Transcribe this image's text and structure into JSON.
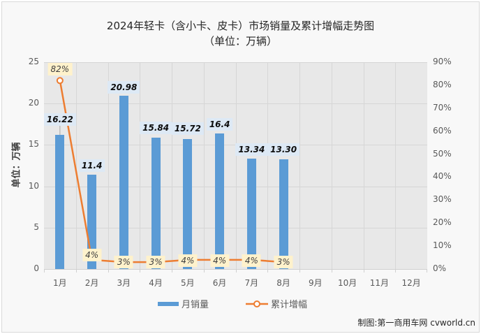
{
  "title": "2024年轻卡（含小卡、皮卡）市场销量及累计增幅走势图",
  "subtitle": "（单位：万辆）",
  "credit": "制图:第一商用车网 cvworld.cn",
  "colors": {
    "bar": "#5b9bd5",
    "line": "#ed7d31",
    "plot_bg": "#e8e8e8",
    "bar_label_bg": "#dde9f5",
    "line_label_bg": "#fff2cc"
  },
  "chart_data": {
    "type": "bar",
    "title": "2024年轻卡（含小卡、皮卡）市场销量及累计增幅走势图（单位：万辆）",
    "xlabel": "",
    "ylabel": "单位：万辆",
    "ylim": [
      0,
      25
    ],
    "y2lim": [
      0,
      90
    ],
    "y_ticks": [
      "0",
      "5",
      "10",
      "15",
      "20",
      "25"
    ],
    "y2_ticks": [
      "0%",
      "10%",
      "20%",
      "30%",
      "40%",
      "50%",
      "60%",
      "70%",
      "80%",
      "90%"
    ],
    "categories": [
      "1月",
      "2月",
      "3月",
      "4月",
      "5月",
      "6月",
      "7月",
      "8月",
      "9月",
      "10月",
      "11月",
      "12月"
    ],
    "grid": true,
    "legend_position": "bottom",
    "series": [
      {
        "name": "月销量",
        "type": "bar",
        "axis": "left",
        "values": [
          16.22,
          11.4,
          20.98,
          15.84,
          15.72,
          16.4,
          13.34,
          13.3,
          null,
          null,
          null,
          null
        ],
        "labels": [
          "16.22",
          "11.4",
          "20.98",
          "15.84",
          "15.72",
          "16.4",
          "13.34",
          "13.30"
        ]
      },
      {
        "name": "累计增幅",
        "type": "line",
        "axis": "right",
        "values": [
          82,
          4,
          3,
          3,
          4,
          4,
          4,
          3,
          null,
          null,
          null,
          null
        ],
        "labels": [
          "82%",
          "4%",
          "3%",
          "3%",
          "4%",
          "4%",
          "4%",
          "3%"
        ]
      }
    ]
  }
}
